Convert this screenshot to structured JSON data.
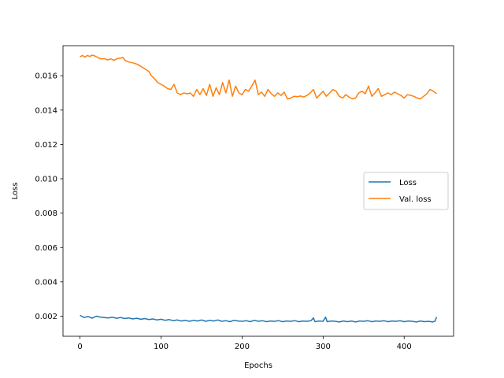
{
  "chart_data": {
    "type": "line",
    "title": "",
    "xlabel": "Epochs",
    "ylabel": "Loss",
    "xlim": [
      -21,
      461
    ],
    "ylim": [
      0.00083,
      0.01775
    ],
    "xticks": [
      0,
      100,
      200,
      300,
      400
    ],
    "xtick_labels": [
      "0",
      "100",
      "200",
      "300",
      "400"
    ],
    "yticks": [
      0.002,
      0.004,
      0.006,
      0.008,
      0.01,
      0.012,
      0.014,
      0.016
    ],
    "ytick_labels": [
      "0.002",
      "0.004",
      "0.006",
      "0.008",
      "0.010",
      "0.012",
      "0.014",
      "0.016"
    ],
    "grid": false,
    "legend_position": "center-right",
    "series": [
      {
        "name": "Loss",
        "color": "#1f77b4",
        "x": [
          0,
          5,
          10,
          15,
          20,
          25,
          30,
          35,
          40,
          45,
          50,
          55,
          60,
          65,
          70,
          75,
          80,
          85,
          90,
          95,
          100,
          105,
          110,
          115,
          120,
          125,
          130,
          135,
          140,
          145,
          150,
          155,
          160,
          165,
          170,
          175,
          180,
          185,
          190,
          195,
          200,
          205,
          210,
          215,
          220,
          225,
          230,
          235,
          240,
          245,
          250,
          255,
          260,
          265,
          270,
          275,
          280,
          285,
          288,
          290,
          295,
          300,
          303,
          305,
          310,
          315,
          320,
          325,
          330,
          335,
          340,
          345,
          350,
          355,
          360,
          365,
          370,
          375,
          380,
          385,
          390,
          395,
          400,
          405,
          410,
          415,
          420,
          425,
          430,
          435,
          438,
          440
        ],
        "y": [
          0.00205,
          0.00192,
          0.00198,
          0.00188,
          0.002,
          0.00195,
          0.00192,
          0.0019,
          0.00194,
          0.00188,
          0.00192,
          0.00186,
          0.0019,
          0.00184,
          0.00188,
          0.00182,
          0.00186,
          0.0018,
          0.00184,
          0.00178,
          0.00182,
          0.00176,
          0.0018,
          0.00174,
          0.00178,
          0.00172,
          0.00176,
          0.0017,
          0.00176,
          0.00172,
          0.00178,
          0.0017,
          0.00176,
          0.00172,
          0.00178,
          0.0017,
          0.00174,
          0.00168,
          0.00176,
          0.00172,
          0.0017,
          0.00174,
          0.00168,
          0.00176,
          0.0017,
          0.00174,
          0.00168,
          0.00172,
          0.0017,
          0.00174,
          0.00168,
          0.00172,
          0.0017,
          0.00174,
          0.00168,
          0.00172,
          0.0017,
          0.00174,
          0.0019,
          0.00168,
          0.00172,
          0.0017,
          0.00195,
          0.00168,
          0.00172,
          0.0017,
          0.00166,
          0.00172,
          0.00168,
          0.00172,
          0.00166,
          0.00172,
          0.0017,
          0.00174,
          0.00168,
          0.00172,
          0.0017,
          0.00174,
          0.00168,
          0.00172,
          0.0017,
          0.00174,
          0.00168,
          0.00172,
          0.0017,
          0.00166,
          0.00172,
          0.00168,
          0.0017,
          0.00166,
          0.0017,
          0.00195
        ]
      },
      {
        "name": "Val. loss",
        "color": "#ff7f0e",
        "x": [
          0,
          3,
          6,
          9,
          12,
          15,
          18,
          22,
          26,
          30,
          34,
          38,
          42,
          46,
          50,
          53,
          56,
          60,
          65,
          70,
          75,
          80,
          85,
          88,
          92,
          96,
          100,
          104,
          108,
          112,
          116,
          120,
          124,
          128,
          132,
          136,
          140,
          144,
          148,
          152,
          156,
          160,
          164,
          168,
          172,
          176,
          180,
          184,
          188,
          192,
          196,
          200,
          204,
          208,
          212,
          216,
          220,
          224,
          228,
          232,
          236,
          240,
          244,
          248,
          252,
          256,
          260,
          264,
          268,
          272,
          276,
          280,
          284,
          288,
          292,
          296,
          300,
          304,
          308,
          312,
          316,
          320,
          324,
          328,
          332,
          336,
          340,
          344,
          348,
          352,
          356,
          360,
          364,
          368,
          372,
          376,
          380,
          384,
          388,
          392,
          396,
          400,
          404,
          408,
          412,
          416,
          420,
          424,
          428,
          432,
          436,
          440
        ],
        "y": [
          0.0171,
          0.01718,
          0.01708,
          0.01718,
          0.01712,
          0.0172,
          0.01716,
          0.01706,
          0.01698,
          0.017,
          0.01692,
          0.01698,
          0.0169,
          0.017,
          0.01702,
          0.01706,
          0.01688,
          0.0168,
          0.01675,
          0.01668,
          0.01655,
          0.0164,
          0.01625,
          0.016,
          0.01582,
          0.0156,
          0.0155,
          0.0154,
          0.01525,
          0.0152,
          0.0155,
          0.015,
          0.0149,
          0.015,
          0.01495,
          0.015,
          0.0148,
          0.0152,
          0.0149,
          0.01525,
          0.01485,
          0.0155,
          0.0148,
          0.0153,
          0.0149,
          0.0156,
          0.015,
          0.01575,
          0.0148,
          0.0154,
          0.015,
          0.0149,
          0.0152,
          0.0151,
          0.0154,
          0.01575,
          0.0149,
          0.01505,
          0.0148,
          0.0152,
          0.01495,
          0.0148,
          0.015,
          0.01485,
          0.01505,
          0.01465,
          0.0147,
          0.0148,
          0.01478,
          0.01482,
          0.01476,
          0.01485,
          0.015,
          0.0152,
          0.0147,
          0.0149,
          0.0151,
          0.0148,
          0.015,
          0.0152,
          0.0151,
          0.0148,
          0.0147,
          0.0149,
          0.01475,
          0.01465,
          0.0147,
          0.015,
          0.0151,
          0.01495,
          0.0154,
          0.0148,
          0.015,
          0.01525,
          0.0148,
          0.0149,
          0.015,
          0.0149,
          0.01505,
          0.01495,
          0.01485,
          0.0147,
          0.0149,
          0.01485,
          0.0148,
          0.0147,
          0.01465,
          0.0148,
          0.01495,
          0.0152,
          0.0151,
          0.01495
        ]
      }
    ]
  }
}
